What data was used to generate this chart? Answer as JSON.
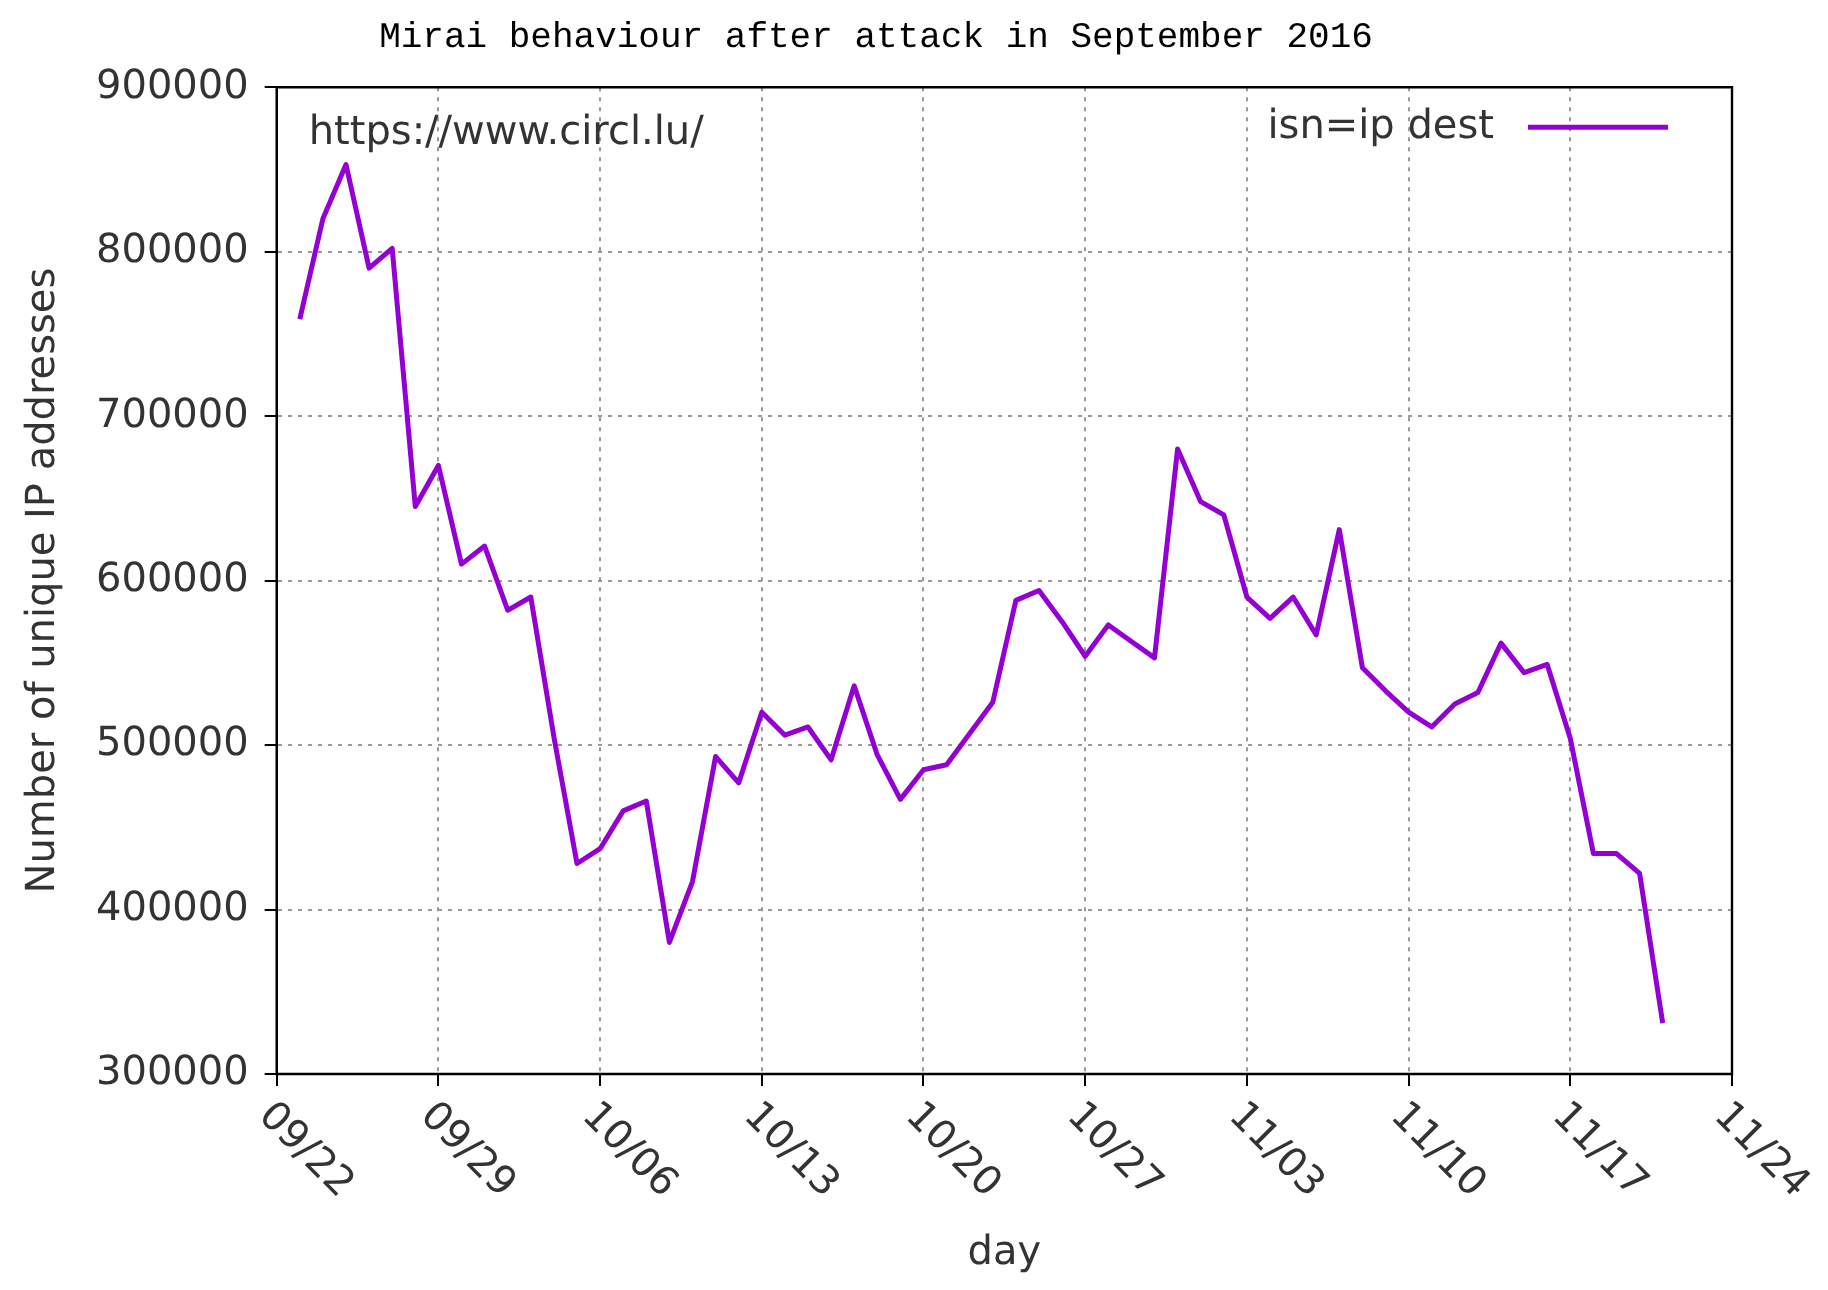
{
  "chart_data": {
    "type": "line",
    "title": "Mirai behaviour after attack in September 2016",
    "xlabel": "day",
    "ylabel": "Number of unique IP addresses",
    "annotations": [
      "https://www.circl.lu/"
    ],
    "x": [
      "--09-23",
      "--09-24",
      "--09-25",
      "--09-26",
      "--09-27",
      "--09-28",
      "--09-29",
      "--09-30",
      "--10-01",
      "--10-02",
      "--10-03",
      "--10-04",
      "--10-05",
      "--10-06",
      "--10-07",
      "--10-08",
      "--10-09",
      "--10-10",
      "--10-11",
      "--10-12",
      "--10-13",
      "--10-14",
      "--10-15",
      "--10-16",
      "--10-17",
      "--10-18",
      "--10-19",
      "--10-20",
      "--10-21",
      "--10-22",
      "--10-23",
      "--10-24",
      "--10-25",
      "--10-26",
      "--10-27",
      "--10-28",
      "--10-29",
      "--10-30",
      "--10-31",
      "--11-01",
      "--11-02",
      "--11-03",
      "--11-04",
      "--11-05",
      "--11-06",
      "--11-07",
      "--11-08",
      "--11-09",
      "--11-10",
      "--11-11",
      "--11-12",
      "--11-13",
      "--11-14",
      "--11-15",
      "--11-16",
      "--11-17",
      "--11-18",
      "--11-19",
      "--11-20",
      "--11-21"
    ],
    "series": [
      {
        "name": "isn=ip dest",
        "color": "#9400d3",
        "values": [
          759000,
          820000,
          853000,
          790000,
          802000,
          645000,
          670000,
          610000,
          621000,
          582000,
          590000,
          505000,
          428000,
          437000,
          460000,
          466000,
          380000,
          417000,
          493000,
          477000,
          520000,
          506000,
          511000,
          491000,
          536000,
          494000,
          467000,
          485000,
          488000,
          507000,
          526000,
          588000,
          594000,
          575000,
          554000,
          573000,
          563000,
          553000,
          680000,
          648000,
          640000,
          590000,
          577000,
          590000,
          567000,
          631000,
          547000,
          533000,
          520000,
          511000,
          525000,
          532000,
          562000,
          544000,
          549000,
          504000,
          434000,
          434000,
          422000,
          331000
        ]
      }
    ],
    "xlim": [
      "--09-22",
      "--11-24"
    ],
    "xticks": [
      {
        "value": "--09-22",
        "label": "09/22"
      },
      {
        "value": "--09-29",
        "label": "09/29"
      },
      {
        "value": "--10-06",
        "label": "10/06"
      },
      {
        "value": "--10-13",
        "label": "10/13"
      },
      {
        "value": "--10-20",
        "label": "10/20"
      },
      {
        "value": "--10-27",
        "label": "10/27"
      },
      {
        "value": "--11-03",
        "label": "11/03"
      },
      {
        "value": "--11-10",
        "label": "11/10"
      },
      {
        "value": "--11-17",
        "label": "11/17"
      },
      {
        "value": "--11-24",
        "label": "11/24"
      }
    ],
    "ylim": [
      300000,
      900000
    ],
    "yticks": [
      300000,
      400000,
      500000,
      600000,
      700000,
      800000,
      900000
    ],
    "grid": true,
    "legend": "top right",
    "marker": "none",
    "line_style": "solid"
  }
}
